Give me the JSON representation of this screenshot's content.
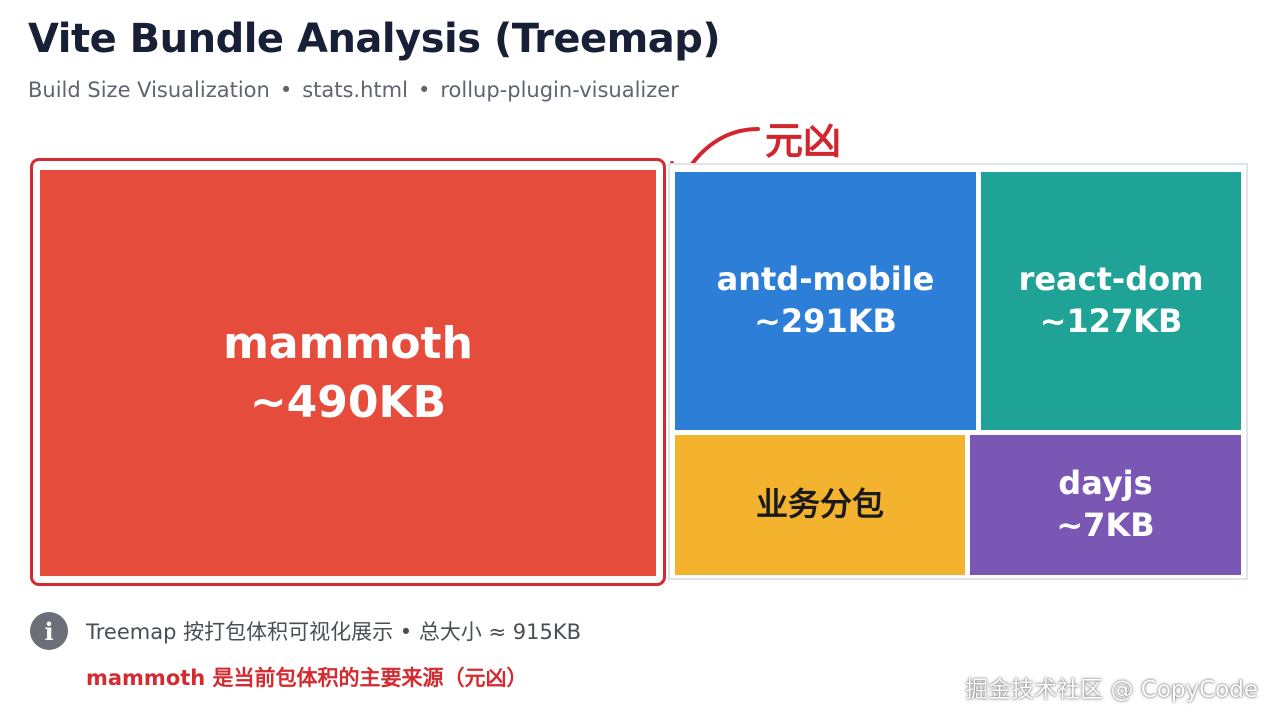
{
  "title": "Vite Bundle Analysis (Treemap)",
  "subtitle": {
    "parts": [
      "Build Size Visualization",
      "stats.html",
      "rollup-plugin-visualizer"
    ],
    "separator": "•"
  },
  "annotation": {
    "label": "元凶",
    "color": "#d2252d"
  },
  "chart_data": {
    "type": "treemap",
    "unit": "KB",
    "items": [
      {
        "name": "mammoth",
        "size_label": "~490KB",
        "value": 490,
        "color": "#e64c3c",
        "highlighted": true
      },
      {
        "name": "antd-mobile",
        "size_label": "~291KB",
        "value": 291,
        "color": "#2d7ed6"
      },
      {
        "name": "react-dom",
        "size_label": "~127KB",
        "value": 127,
        "color": "#1fa396"
      },
      {
        "name": "业务分包",
        "size_label": "",
        "color": "#f3b32e"
      },
      {
        "name": "dayjs",
        "size_label": "~7KB",
        "value": 7,
        "color": "#7b57b5"
      }
    ]
  },
  "info": {
    "icon": "info-icon",
    "text": "Treemap 按打包体积可视化展示 • 总大小 ≈ 915KB"
  },
  "note": "mammoth 是当前包体积的主要来源（元凶）",
  "watermark": "掘金技术社区 @ CopyCode"
}
